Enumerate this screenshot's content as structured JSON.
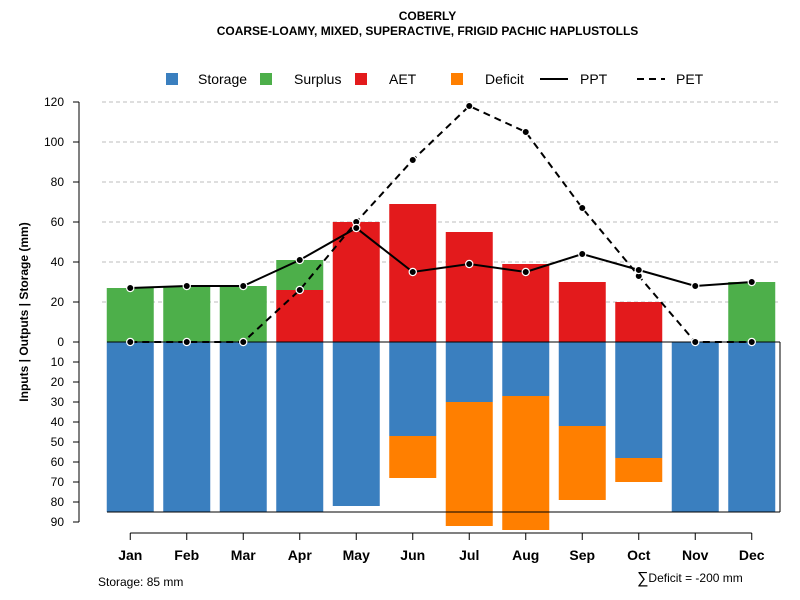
{
  "title": "COBERLY",
  "subtitle": "COARSE-LOAMY, MIXED, SUPERACTIVE, FRIGID PACHIC HAPLUSTOLLS",
  "footer": {
    "storage": "Storage: 85 mm",
    "deficit_symbol": "∑",
    "deficit": "Deficit = -200 mm"
  },
  "colors": {
    "storage": "#3a7fbf",
    "surplus": "#4daf4a",
    "aet": "#e31a1c",
    "deficit": "#ff7f00",
    "grid": "#bdbdbd"
  },
  "chart_data": {
    "type": "bar",
    "ylabel": "Inputs | Outputs | Storage    (mm)",
    "ylim_top": [
      0,
      120
    ],
    "ylim_bottom": [
      0,
      90
    ],
    "yticks_top": [
      0,
      20,
      40,
      60,
      80,
      100,
      120
    ],
    "yticks_bottom": [
      10,
      20,
      30,
      40,
      50,
      60,
      70,
      80,
      90
    ],
    "storage_capacity": 85,
    "categories": [
      "Jan",
      "Feb",
      "Mar",
      "Apr",
      "May",
      "Jun",
      "Jul",
      "Aug",
      "Sep",
      "Oct",
      "Nov",
      "Dec"
    ],
    "legend": [
      {
        "name": "Storage",
        "kind": "box",
        "color_key": "storage"
      },
      {
        "name": "Surplus",
        "kind": "box",
        "color_key": "surplus"
      },
      {
        "name": "AET",
        "kind": "box",
        "color_key": "aet"
      },
      {
        "name": "Deficit",
        "kind": "box",
        "color_key": "deficit"
      },
      {
        "name": "PPT",
        "kind": "solid"
      },
      {
        "name": "PET",
        "kind": "dashed"
      }
    ],
    "aet": [
      0,
      0,
      0,
      26,
      60,
      69,
      55,
      39,
      30,
      20,
      0,
      0
    ],
    "surplus": [
      27,
      28,
      28,
      15,
      0,
      0,
      0,
      0,
      0,
      0,
      0,
      30
    ],
    "storage": [
      85,
      85,
      85,
      85,
      82,
      47,
      30,
      27,
      42,
      58,
      85,
      85
    ],
    "deficit": [
      0,
      0,
      0,
      0,
      0,
      21,
      62,
      67,
      37,
      12,
      0,
      0
    ],
    "ppt": [
      27,
      28,
      28,
      41,
      57,
      35,
      39,
      35,
      44,
      36,
      28,
      30
    ],
    "pet": [
      0,
      0,
      0,
      26,
      60,
      91,
      118,
      105,
      67,
      33,
      0,
      0
    ]
  }
}
